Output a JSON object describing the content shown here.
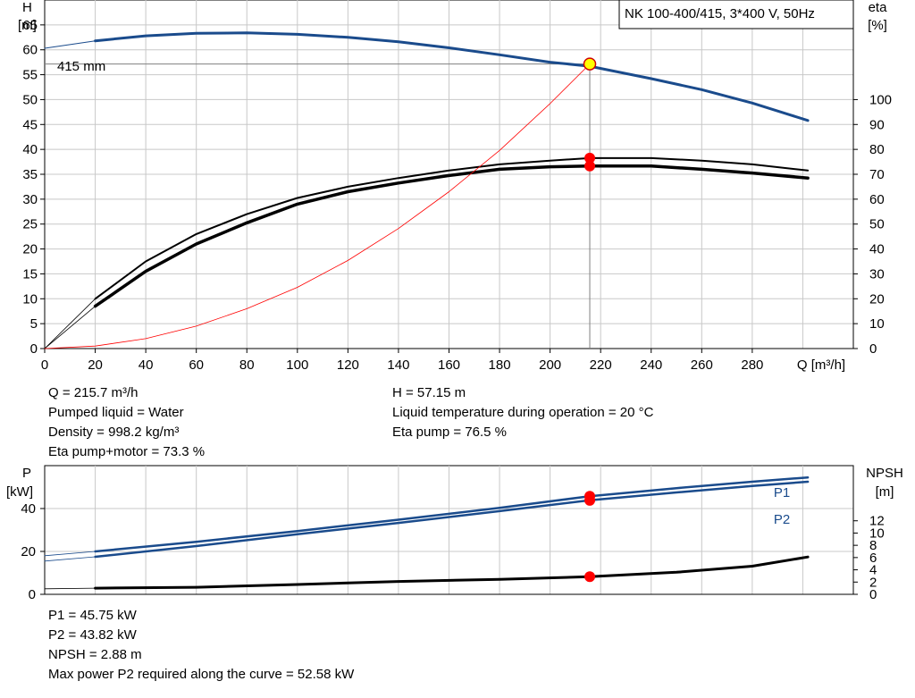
{
  "chart_data": [
    {
      "type": "line",
      "title": "NK 100-400/415, 3*400 V, 50Hz",
      "y_left_label": [
        "H",
        "[m]"
      ],
      "y_right_label": [
        "eta",
        "[%]"
      ],
      "x_label": "Q [m³/h]",
      "xlim": [
        0,
        320
      ],
      "x_ticks": [
        0,
        20,
        40,
        60,
        80,
        100,
        120,
        140,
        160,
        180,
        200,
        220,
        240,
        260,
        280
      ],
      "ylim_left": [
        0,
        70
      ],
      "y_ticks_left": [
        0,
        5,
        10,
        15,
        20,
        25,
        30,
        35,
        40,
        45,
        50,
        55,
        60,
        65
      ],
      "ylim_right": [
        0,
        140
      ],
      "y_ticks_right": [
        0,
        10,
        20,
        30,
        40,
        50,
        60,
        70,
        80,
        90,
        100
      ],
      "grid": true,
      "annotation": "415 mm",
      "series": [
        {
          "name": "",
          "axis": "left",
          "color": "#1a4b8c",
          "width": 3,
          "x": [
            20,
            40,
            60,
            80,
            100,
            120,
            140,
            160,
            180,
            200,
            215.7,
            240,
            260,
            280,
            302
          ],
          "y": [
            61.8,
            62.8,
            63.3,
            63.4,
            63.1,
            62.5,
            61.6,
            60.4,
            59.0,
            57.5,
            56.7,
            54.2,
            52.0,
            49.3,
            45.8
          ]
        },
        {
          "name": "",
          "axis": "left",
          "color": "#1a4b8c",
          "width": 1,
          "x": [
            0,
            20
          ],
          "y": [
            60.3,
            61.8
          ]
        },
        {
          "name": "",
          "axis": "right",
          "color": "#000000",
          "width": 2,
          "x": [
            20,
            40,
            60,
            80,
            100,
            120,
            140,
            160,
            180,
            200,
            215.7,
            240,
            260,
            280,
            302
          ],
          "y": [
            20,
            35,
            46,
            54,
            60.5,
            65,
            68.5,
            71.5,
            74,
            75.5,
            76.5,
            76.5,
            75.5,
            74,
            71.5
          ]
        },
        {
          "name": "",
          "axis": "right",
          "color": "#000000",
          "width": 3.5,
          "x": [
            20,
            40,
            60,
            80,
            100,
            120,
            140,
            160,
            180,
            200,
            215.7,
            240,
            260,
            280,
            302
          ],
          "y": [
            17,
            31,
            42,
            50.5,
            58,
            63,
            66.5,
            69.5,
            72,
            73,
            73.3,
            73.3,
            72,
            70.5,
            68.5
          ]
        },
        {
          "name": "",
          "axis": "right",
          "color": "#000000",
          "width": 0.8,
          "x": [
            0,
            20
          ],
          "y": [
            0,
            20
          ]
        },
        {
          "name": "",
          "axis": "right",
          "color": "#000000",
          "width": 0.8,
          "x": [
            0,
            20
          ],
          "y": [
            0,
            17
          ]
        },
        {
          "name": "",
          "axis": "left",
          "color": "#ff0000",
          "width": 0.8,
          "x": [
            0,
            20,
            40,
            60,
            80,
            100,
            120,
            140,
            160,
            180,
            200,
            215.7
          ],
          "y": [
            0,
            0.5,
            2,
            4.5,
            8,
            12.3,
            17.7,
            24.1,
            31.5,
            39.8,
            49.2,
            57.15
          ]
        }
      ],
      "operating_point": {
        "Q": 215.7,
        "H": 57.15,
        "eta_pump": 76.5,
        "eta_pump_motor": 73.3
      },
      "info": [
        [
          "Q = 215.7 m³/h",
          "Pumped liquid = Water",
          "Density = 998.2 kg/m³",
          "Eta pump+motor = 73.3 %"
        ],
        [
          "H = 57.15 m",
          "Liquid temperature during operation = 20 °C",
          "Eta pump = 76.5 %"
        ]
      ]
    },
    {
      "type": "line",
      "y_left_label": [
        "P",
        "[kW]"
      ],
      "y_right_label": [
        "NPSH",
        "[m]"
      ],
      "xlim": [
        0,
        320
      ],
      "ylim_left": [
        0,
        60
      ],
      "y_ticks_left": [
        0,
        20,
        40
      ],
      "ylim_right": [
        0,
        21
      ],
      "y_ticks_right": [
        0,
        2,
        4,
        6,
        8,
        10,
        12
      ],
      "grid": true,
      "series": [
        {
          "name": "P1",
          "axis": "left",
          "color": "#1a4b8c",
          "width": 2.5,
          "x": [
            20,
            60,
            100,
            140,
            180,
            215.7,
            250,
            280,
            302
          ],
          "y": [
            20,
            24.5,
            29.5,
            34.8,
            40.3,
            45.75,
            49.5,
            52.5,
            54.5
          ]
        },
        {
          "name": "P2",
          "axis": "left",
          "color": "#1a4b8c",
          "width": 2.5,
          "x": [
            20,
            60,
            100,
            140,
            180,
            215.7,
            250,
            280,
            302
          ],
          "y": [
            17.5,
            22.5,
            28,
            33.3,
            38.8,
            43.82,
            47.5,
            50.5,
            52.5
          ]
        },
        {
          "name": "",
          "axis": "left",
          "color": "#1a4b8c",
          "width": 0.8,
          "x": [
            0,
            20
          ],
          "y": [
            18,
            20
          ]
        },
        {
          "name": "",
          "axis": "left",
          "color": "#1a4b8c",
          "width": 0.8,
          "x": [
            0,
            20
          ],
          "y": [
            15.5,
            17.5
          ]
        },
        {
          "name": "",
          "axis": "right",
          "color": "#000000",
          "width": 3,
          "x": [
            20,
            60,
            100,
            140,
            180,
            215.7,
            250,
            280,
            302
          ],
          "y": [
            1.0,
            1.15,
            1.6,
            2.1,
            2.45,
            2.88,
            3.6,
            4.6,
            6.1
          ]
        },
        {
          "name": "",
          "axis": "right",
          "color": "#000000",
          "width": 0.8,
          "x": [
            0,
            20
          ],
          "y": [
            0.9,
            1.0
          ]
        }
      ],
      "labels": [
        "P1",
        "P2"
      ],
      "operating_point": {
        "Q": 215.7,
        "P1": 45.75,
        "P2": 43.82,
        "NPSH": 2.88
      },
      "info": [
        "P1 = 45.75 kW",
        "P2 = 43.82 kW",
        "NPSH = 2.88 m",
        "Max power P2 required along the curve = 52.58 kW"
      ]
    }
  ]
}
